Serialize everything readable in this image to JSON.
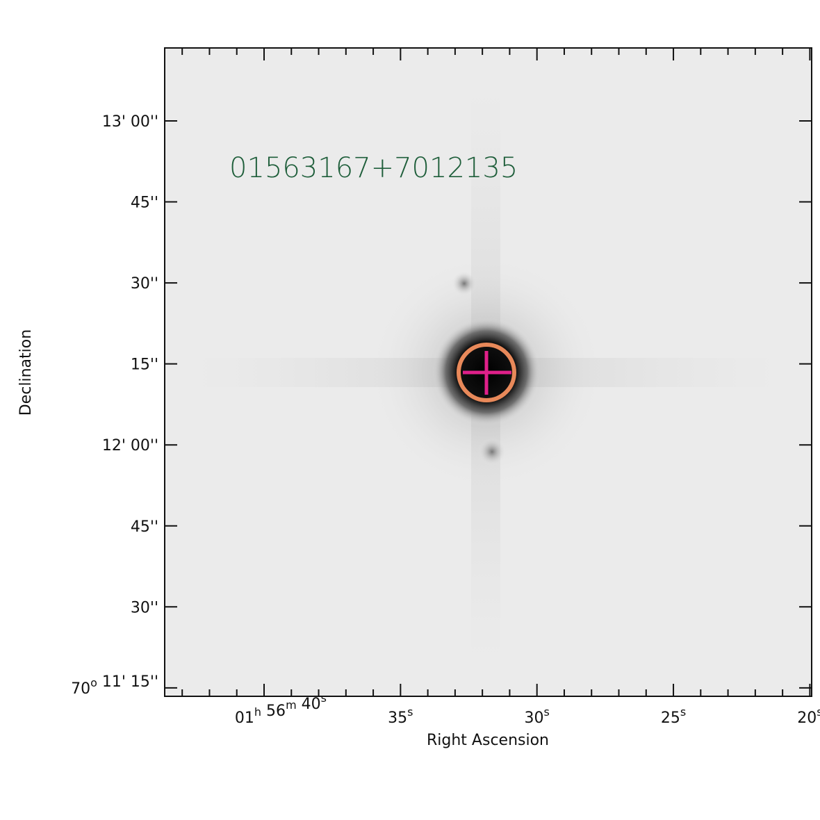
{
  "image_label": "01563167+7012135",
  "x_axis": {
    "title": "Right Ascension",
    "ticks": [
      [
        [
          "01",
          "h"
        ],
        [
          " 56",
          "m"
        ],
        [
          " 40",
          "s"
        ]
      ],
      [
        [
          "35",
          "s"
        ]
      ],
      [
        [
          "30",
          "s"
        ]
      ],
      [
        [
          "25",
          "s"
        ]
      ],
      [
        [
          "20",
          "s"
        ]
      ]
    ]
  },
  "y_axis": {
    "title": "Declination",
    "ticks": [
      [
        [
          "13' 00''"
        ]
      ],
      [
        [
          "45''"
        ]
      ],
      [
        [
          "30''"
        ]
      ],
      [
        [
          "15''"
        ]
      ],
      [
        [
          "12' 00''"
        ]
      ],
      [
        [
          "45''"
        ]
      ],
      [
        [
          "30''"
        ]
      ],
      [
        [
          "70",
          "o"
        ],
        [
          " 11' 15''"
        ]
      ]
    ]
  }
}
